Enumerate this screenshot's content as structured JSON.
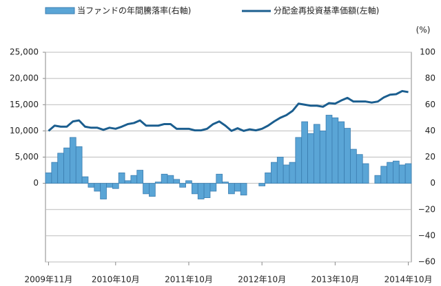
{
  "chart_data": {
    "type": "combo",
    "categories": [
      "2009年11月",
      null,
      null,
      null,
      null,
      null,
      null,
      null,
      null,
      null,
      null,
      "2010年10月",
      null,
      null,
      null,
      null,
      null,
      null,
      null,
      null,
      null,
      null,
      null,
      "2011年10月",
      null,
      null,
      null,
      null,
      null,
      null,
      null,
      null,
      null,
      null,
      null,
      "2012年10月",
      null,
      null,
      null,
      null,
      null,
      null,
      null,
      null,
      null,
      null,
      null,
      "2013年10月",
      null,
      null,
      null,
      null,
      null,
      null,
      null,
      null,
      null,
      null,
      null,
      "2014年10月"
    ],
    "series": [
      {
        "name": "当ファンドの年間騰落率(右軸)",
        "type": "bar",
        "axis": "y2",
        "color": "#5aa5d6",
        "values": [
          8,
          16,
          23,
          27,
          35,
          28,
          5,
          -3,
          -6,
          -12,
          -3,
          -4,
          8,
          2,
          6,
          10,
          -8,
          -10,
          1,
          7,
          6,
          3,
          -3,
          2,
          -8,
          -12,
          -11,
          -6,
          7,
          1,
          -8,
          -6,
          -9,
          0,
          0,
          -2,
          8,
          16,
          20,
          14,
          16,
          35,
          47,
          38,
          45,
          40,
          52,
          50,
          47,
          42,
          26,
          22,
          15,
          0,
          6,
          13,
          16,
          17,
          14,
          15
        ]
      },
      {
        "name": "分配金再投資基準価額(左軸)",
        "type": "line",
        "axis": "y",
        "color": "#1b5e8f",
        "values": [
          10000,
          11000,
          10800,
          10800,
          11800,
          12000,
          10800,
          10600,
          10600,
          10200,
          10600,
          10400,
          10800,
          11300,
          11500,
          12000,
          11000,
          11000,
          11000,
          11300,
          11300,
          10400,
          10400,
          10400,
          10100,
          10100,
          10400,
          11300,
          11800,
          11000,
          10000,
          10500,
          10000,
          10300,
          10100,
          10400,
          11000,
          11800,
          12500,
          13000,
          13800,
          15200,
          15000,
          14800,
          14800,
          14600,
          15300,
          15200,
          15800,
          16300,
          15600,
          15600,
          15600,
          15400,
          15600,
          16400,
          16900,
          17000,
          17600,
          17400
        ]
      }
    ],
    "ylim": [
      -15000,
      25000
    ],
    "yticks": [
      0,
      {
        "value": 5000,
        "label": "5,000"
      },
      {
        "value": 10000,
        "label": "10,000"
      },
      {
        "value": 15000,
        "label": "15,000"
      },
      {
        "value": 20000,
        "label": "20,000"
      },
      {
        "value": 25000,
        "label": "25,000"
      }
    ],
    "y2lim": [
      -60,
      100
    ],
    "y2ticks": [
      {
        "value": -60,
        "label": "−60"
      },
      {
        "value": -40,
        "label": "−40"
      },
      {
        "value": -20,
        "label": "−20"
      },
      0,
      20,
      40,
      60,
      80,
      100
    ],
    "y2label": "(%)",
    "grid": true
  }
}
